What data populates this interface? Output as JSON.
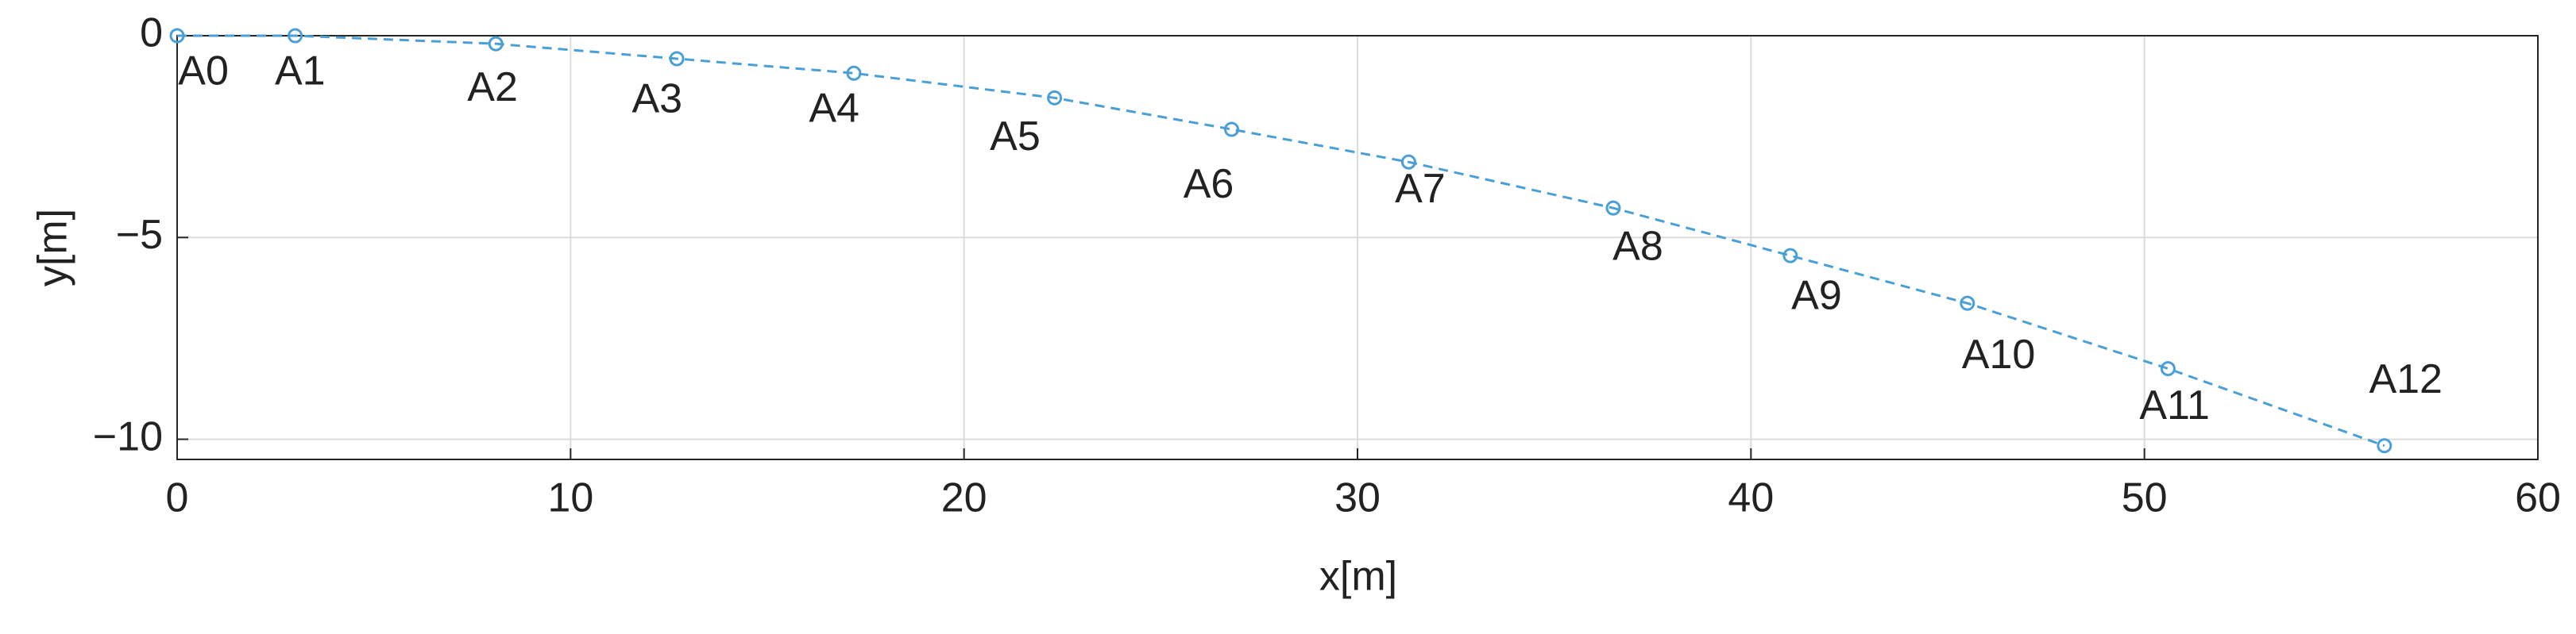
{
  "chart_data": {
    "type": "line",
    "xlabel": "x[m]",
    "ylabel": "y[m]",
    "labels": [
      "A0",
      "A1",
      "A2",
      "A3",
      "A4",
      "A5",
      "A6",
      "A7",
      "A8",
      "A9",
      "A10",
      "A11",
      "A12"
    ],
    "x": [
      0,
      3.0,
      8.1,
      12.7,
      17.2,
      22.3,
      26.8,
      31.3,
      36.5,
      41.0,
      45.5,
      50.6,
      56.1
    ],
    "series": [
      {
        "color": "#4a9fd6",
        "values": [
          0,
          0,
          -0.2,
          -0.57,
          -0.93,
          -1.54,
          -2.32,
          -3.13,
          -4.27,
          -5.45,
          -6.63,
          -8.25,
          -10.16
        ]
      }
    ],
    "xlim": [
      0,
      60
    ],
    "xticks": [
      0,
      10,
      20,
      30,
      40,
      50,
      60
    ],
    "ylim": [
      -10.5,
      0
    ],
    "yticks": [
      {
        "value": -10,
        "label": "−10"
      },
      {
        "value": -5,
        "label": "−5"
      },
      0
    ],
    "grid": true
  }
}
